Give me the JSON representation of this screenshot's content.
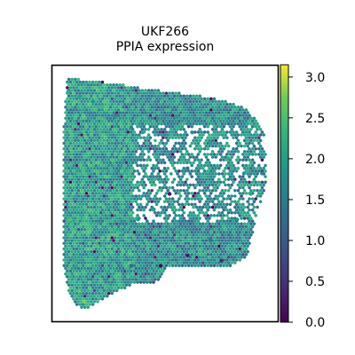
{
  "chart_data": {
    "type": "scatter",
    "title": "UKF266",
    "subtitle": "PPIA expression",
    "xlabel": "",
    "ylabel": "",
    "axes_ticks_visible": false,
    "grid": false,
    "point_shape": "hexagon",
    "colormap": "viridis",
    "colorbar": {
      "position": "right",
      "range": [
        0,
        3.15
      ],
      "ticks": [
        0.0,
        0.5,
        1.0,
        1.5,
        2.0,
        2.5,
        3.0
      ],
      "tick_labels": [
        "0.0",
        "0.5",
        "1.0",
        "1.5",
        "2.0",
        "2.5",
        "3.0"
      ]
    },
    "x_range": [
      0,
      100
    ],
    "y_range": [
      0,
      100
    ],
    "points": [
      {
        "x": 7,
        "y": 90,
        "value": 2.2
      },
      {
        "x": 12,
        "y": 88,
        "value": 2.0
      },
      {
        "x": 18,
        "y": 86,
        "value": 1.8
      },
      {
        "x": 22,
        "y": 84,
        "value": 2.4
      },
      {
        "x": 28,
        "y": 80,
        "value": 1.9
      },
      {
        "x": 35,
        "y": 76,
        "value": 1.6
      },
      {
        "x": 40,
        "y": 74,
        "value": 2.1
      },
      {
        "x": 48,
        "y": 78,
        "value": 2.3
      },
      {
        "x": 55,
        "y": 80,
        "value": 2.0
      },
      {
        "x": 62,
        "y": 74,
        "value": 1.7
      },
      {
        "x": 70,
        "y": 70,
        "value": 2.0
      },
      {
        "x": 78,
        "y": 64,
        "value": 2.2
      },
      {
        "x": 85,
        "y": 58,
        "value": 1.8
      },
      {
        "x": 60,
        "y": 60,
        "value": 1.5
      },
      {
        "x": 52,
        "y": 50,
        "value": 0.3
      },
      {
        "x": 45,
        "y": 44,
        "value": 1.9
      },
      {
        "x": 38,
        "y": 40,
        "value": 2.0
      },
      {
        "x": 30,
        "y": 36,
        "value": 2.2
      },
      {
        "x": 20,
        "y": 30,
        "value": 2.5
      },
      {
        "x": 10,
        "y": 24,
        "value": 2.3
      },
      {
        "x": 8,
        "y": 40,
        "value": 2.6
      },
      {
        "x": 12,
        "y": 12,
        "value": 2.7
      },
      {
        "x": 14,
        "y": 8,
        "value": 2.8
      },
      {
        "x": 25,
        "y": 14,
        "value": 2.4
      },
      {
        "x": 35,
        "y": 22,
        "value": 1.2
      },
      {
        "x": 48,
        "y": 22,
        "value": 0.1
      },
      {
        "x": 60,
        "y": 26,
        "value": 0.2
      },
      {
        "x": 70,
        "y": 32,
        "value": 1.4
      },
      {
        "x": 75,
        "y": 24,
        "value": 0.4
      },
      {
        "x": 82,
        "y": 40,
        "value": 1.8
      },
      {
        "x": 88,
        "y": 50,
        "value": 2.1
      },
      {
        "x": 93,
        "y": 58,
        "value": 1.6
      }
    ]
  }
}
